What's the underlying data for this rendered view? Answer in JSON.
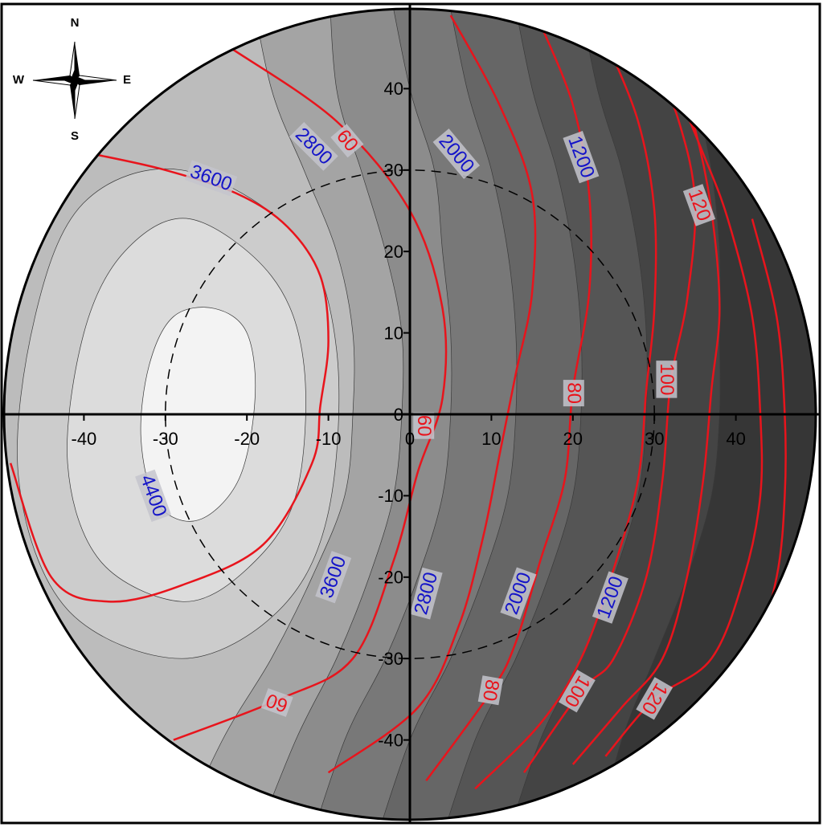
{
  "chart_data": {
    "type": "contour",
    "xlim": [
      -50,
      50
    ],
    "ylim": [
      -50,
      50
    ],
    "xticks": [
      -40,
      -30,
      -20,
      -10,
      0,
      10,
      20,
      30,
      40
    ],
    "yticks": [
      -40,
      -30,
      -20,
      -10,
      0,
      10,
      20,
      30,
      40
    ],
    "base_color": "#363636",
    "filled_levels": [
      {
        "color": "#444444",
        "x": [
          33,
          35,
          37,
          38,
          38,
          38,
          37,
          34,
          30,
          26,
          22
        ],
        "y": [
          55,
          40,
          30,
          20,
          10,
          0,
          -10,
          -20,
          -30,
          -40,
          -55
        ]
      },
      {
        "color": "#555555",
        "x": [
          20,
          23,
          26,
          28,
          29,
          29,
          28,
          25,
          21,
          16,
          11
        ],
        "y": [
          55,
          40,
          30,
          20,
          10,
          0,
          -10,
          -20,
          -30,
          -40,
          -55
        ]
      },
      {
        "color": "#666666",
        "x": [
          12,
          15,
          18,
          20,
          21,
          21,
          20,
          17,
          13,
          8,
          3
        ],
        "y": [
          55,
          40,
          30,
          20,
          10,
          0,
          -10,
          -20,
          -30,
          -40,
          -55
        ]
      },
      {
        "color": "#787878",
        "x": [
          4,
          7,
          10,
          12,
          13,
          13,
          12,
          9,
          5,
          0,
          -5
        ],
        "y": [
          55,
          40,
          30,
          20,
          10,
          0,
          -10,
          -20,
          -30,
          -40,
          -55
        ]
      },
      {
        "color": "#8c8c8c",
        "x": [
          -3,
          0,
          3,
          4,
          5,
          5,
          4,
          1,
          -3,
          -8,
          -13
        ],
        "y": [
          55,
          40,
          30,
          20,
          10,
          0,
          -10,
          -20,
          -30,
          -40,
          -55
        ]
      },
      {
        "color": "#a4a4a4",
        "x": [
          -10,
          -9,
          -6,
          -3,
          -1,
          -1,
          -2,
          -5,
          -9,
          -14,
          -20
        ],
        "y": [
          55,
          40,
          30,
          20,
          10,
          0,
          -10,
          -20,
          -30,
          -40,
          -55
        ]
      },
      {
        "color": "#bcbcbc",
        "x": [
          -20,
          -17,
          -13,
          -9,
          -7,
          -7,
          -8,
          -12,
          -17,
          -23,
          -30
        ],
        "y": [
          55,
          40,
          30,
          20,
          10,
          0,
          -10,
          -20,
          -30,
          -40,
          -55
        ]
      },
      {
        "color": "#cccccc",
        "closed": true,
        "x": [
          -28,
          -14,
          -9,
          -10,
          -16,
          -28,
          -42,
          -48,
          -46,
          -40
        ],
        "y": [
          30,
          22,
          8,
          -12,
          -24,
          -30,
          -24,
          -8,
          12,
          26
        ]
      },
      {
        "color": "#dcdcdc",
        "closed": true,
        "x": [
          -27,
          -17,
          -13,
          -14,
          -20,
          -28,
          -38,
          -42,
          -40,
          -35
        ],
        "y": [
          24,
          17,
          6,
          -10,
          -19,
          -23,
          -18,
          -6,
          10,
          20
        ]
      },
      {
        "color": "#f3f3f3",
        "closed": true,
        "x": [
          -24,
          -20,
          -19,
          -21,
          -26,
          -31,
          -33,
          -32,
          -29
        ],
        "y": [
          13,
          10,
          2,
          -8,
          -13,
          -11,
          -3,
          6,
          12
        ]
      }
    ],
    "red_lines": {
      "color": "#e8141c",
      "lines": [
        {
          "x": [
            -49,
            -44,
            -37,
            -28,
            -18,
            -12,
            -11,
            -10,
            -11,
            -15,
            -21,
            -30,
            -39
          ],
          "y": [
            -6,
            -20,
            -23,
            -21,
            -16,
            -6,
            1,
            9,
            17,
            23,
            27,
            30,
            32
          ]
        },
        {
          "x": [
            -22,
            -9,
            0,
            4,
            4,
            1,
            -2,
            -7,
            -16,
            -29
          ],
          "y": [
            45,
            36,
            25,
            13,
            2,
            -7,
            -18,
            -30,
            -35,
            -40
          ]
        },
        {
          "x": [
            5,
            11,
            15,
            15,
            13,
            11,
            9,
            6,
            1,
            -10
          ],
          "y": [
            49,
            38,
            27,
            15,
            5,
            -5,
            -15,
            -26,
            -36,
            -44
          ]
        },
        {
          "x": [
            16,
            20,
            22,
            22,
            20,
            19,
            16,
            13,
            10,
            2
          ],
          "y": [
            48,
            38,
            27,
            15,
            3,
            -8,
            -18,
            -28,
            -34,
            -45
          ]
        },
        {
          "x": [
            24,
            28,
            30,
            30,
            29,
            28,
            25,
            21,
            16,
            8
          ],
          "y": [
            46,
            36,
            25,
            13,
            3,
            -8,
            -19,
            -30,
            -38,
            -46
          ]
        },
        {
          "x": [
            29,
            33,
            35,
            34,
            32,
            31,
            29,
            25,
            21,
            14
          ],
          "y": [
            46,
            36,
            26,
            14,
            4,
            -8,
            -20,
            -30,
            -34,
            -44
          ]
        },
        {
          "x": [
            32,
            35,
            37,
            38,
            37,
            36,
            34,
            31,
            26,
            20
          ],
          "y": [
            44,
            35,
            25,
            13,
            3,
            -8,
            -20,
            -30,
            -36,
            -43
          ]
        },
        {
          "x": [
            31,
            36,
            39,
            42,
            43,
            43,
            41,
            37,
            30,
            24
          ],
          "y": [
            44,
            32,
            24,
            12,
            0,
            -10,
            -20,
            -30,
            -35,
            -42
          ]
        },
        {
          "x": [
            42,
            45,
            46,
            46,
            45,
            42,
            38
          ],
          "y": [
            24,
            12,
            0,
            -10,
            -20,
            -30,
            -36
          ]
        }
      ]
    },
    "labels": [
      {
        "text": 2800,
        "x": -11.8,
        "y": 32.9,
        "color": "#1414c8"
      },
      {
        "text": 3600,
        "x": -24.4,
        "y": 29,
        "color": "#1414c8"
      },
      {
        "text": 2000,
        "x": 5.7,
        "y": 32,
        "color": "#1414c8"
      },
      {
        "text": 1200,
        "x": 21,
        "y": 31.6,
        "color": "#1414c8"
      },
      {
        "text": 4400,
        "x": -31.5,
        "y": -10,
        "color": "#1414c8"
      },
      {
        "text": 3600,
        "x": -9.4,
        "y": -20,
        "color": "#1414c8"
      },
      {
        "text": 2800,
        "x": 2,
        "y": -22,
        "color": "#1414c8"
      },
      {
        "text": 2000,
        "x": 13.3,
        "y": -22,
        "color": "#1414c8"
      },
      {
        "text": 1200,
        "x": 24.6,
        "y": -22.5,
        "color": "#1414c8"
      },
      {
        "text": 60,
        "x": -7.7,
        "y": 33.6,
        "color": "#e8141c"
      },
      {
        "text": 60,
        "x": 1.7,
        "y": -1.4,
        "color": "#e8141c"
      },
      {
        "text": 80,
        "x": 20.1,
        "y": 2.6,
        "color": "#e8141c"
      },
      {
        "text": 100,
        "x": 31.5,
        "y": 4.3,
        "color": "#e8141c"
      },
      {
        "text": 120,
        "x": 35.5,
        "y": 25.7,
        "color": "#e8141c"
      },
      {
        "text": 60,
        "x": -16.3,
        "y": -35.4,
        "color": "#e8141c"
      },
      {
        "text": 80,
        "x": 9.9,
        "y": -33.9,
        "color": "#e8141c"
      },
      {
        "text": 100,
        "x": 20.5,
        "y": -34,
        "color": "#e8141c"
      },
      {
        "text": 120,
        "x": 30,
        "y": -34.9,
        "color": "#e8141c"
      }
    ],
    "reference_circle": {
      "radius": 30
    },
    "compass": {
      "north": "N",
      "south": "S",
      "east": "E",
      "west": "W"
    }
  }
}
